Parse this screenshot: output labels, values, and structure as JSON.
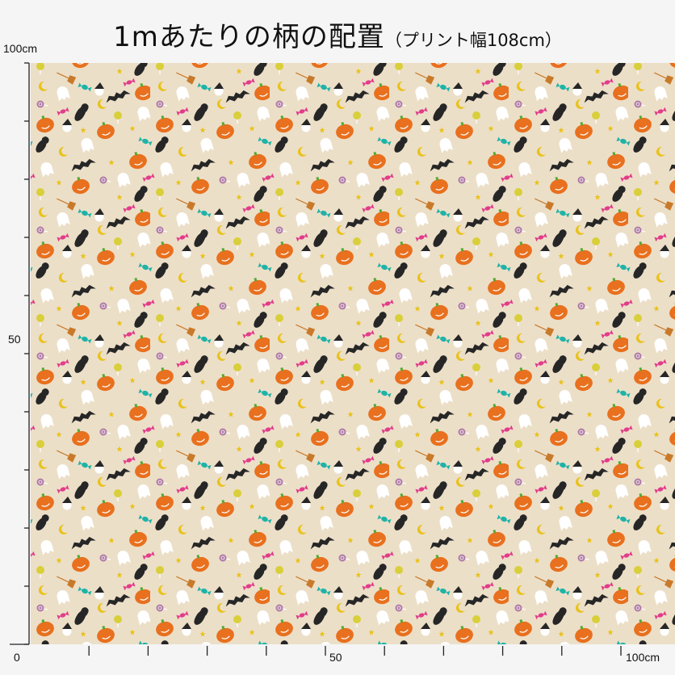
{
  "title": {
    "main": "1mあたりの柄の配置",
    "sub": "（プリント幅108cm）"
  },
  "axis": {
    "left_top": "100cm",
    "left_mid": "50",
    "bottom_zero": "0",
    "bottom_mid": "50",
    "bottom_end": "100cm"
  },
  "colors": {
    "background": "#ecdfc8",
    "pumpkin": "#e8701e",
    "cat": "#262626",
    "ghost": "#ffffff",
    "teal": "#1fb3a8",
    "pink": "#e23c8a",
    "yellow": "#e9c21b",
    "lollipop": "#d9cf3a",
    "swirl": "#b07aa6",
    "broom": "#c87a2a"
  },
  "motifs": [
    "pumpkin",
    "black-cat",
    "bat",
    "ghost",
    "candy",
    "moon",
    "star",
    "lollipop",
    "swirl-lollipop",
    "broom",
    "witch-hat-ghost"
  ]
}
